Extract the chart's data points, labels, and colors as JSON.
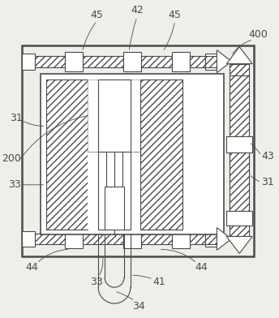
{
  "bg_color": "#f0eeeb",
  "line_color": "#4a4a4a",
  "label_color": "#4a4a4a",
  "fig_w": 3.44,
  "fig_h": 3.92,
  "dpi": 100
}
